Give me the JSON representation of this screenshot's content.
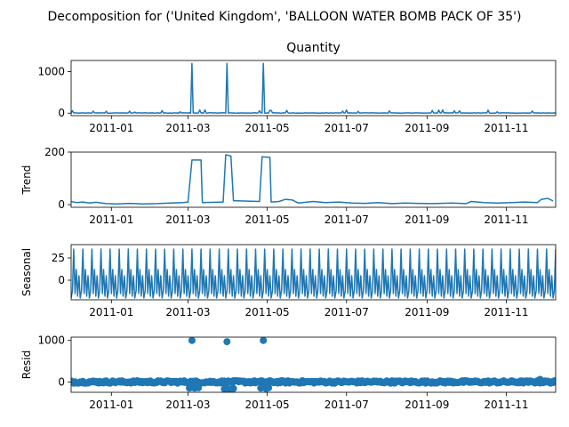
{
  "figure": {
    "suptitle": "Decomposition for ('United Kingdom', 'BALLOON WATER BOMB PACK OF 35')"
  },
  "colors": {
    "line": "#1f77b4",
    "axis": "#000000",
    "background": "#ffffff"
  },
  "chart_data": [
    {
      "type": "line",
      "title": "Quantity",
      "ylabel": "",
      "x_range": [
        "2010-12-01",
        "2011-12-09"
      ],
      "ylim": [
        -60,
        1270
      ],
      "yticks": [
        0,
        1000
      ],
      "xticks": [
        "2011-01",
        "2011-03",
        "2011-05",
        "2011-07",
        "2011-09",
        "2011-11"
      ],
      "spikes": [
        {
          "x": "2011-03-04",
          "y": 1200
        },
        {
          "x": "2011-03-31",
          "y": 1200
        },
        {
          "x": "2011-04-28",
          "y": 1200
        }
      ],
      "baseline": 10,
      "grid": false
    },
    {
      "type": "line",
      "title": "",
      "ylabel": "Trend",
      "x_range": [
        "2010-12-01",
        "2011-12-09"
      ],
      "ylim": [
        -10,
        200
      ],
      "yticks": [
        0,
        200
      ],
      "xticks": [
        "2011-01",
        "2011-03",
        "2011-05",
        "2011-07",
        "2011-09",
        "2011-11"
      ],
      "points": [
        [
          "2010-12-01",
          12
        ],
        [
          "2010-12-05",
          8
        ],
        [
          "2010-12-10",
          10
        ],
        [
          "2010-12-15",
          6
        ],
        [
          "2010-12-20",
          9
        ],
        [
          "2010-12-28",
          4
        ],
        [
          "2011-01-05",
          3
        ],
        [
          "2011-01-15",
          5
        ],
        [
          "2011-01-25",
          3
        ],
        [
          "2011-02-05",
          4
        ],
        [
          "2011-02-15",
          6
        ],
        [
          "2011-02-25",
          8
        ],
        [
          "2011-03-01",
          10
        ],
        [
          "2011-03-04",
          170
        ],
        [
          "2011-03-11",
          170
        ],
        [
          "2011-03-12",
          8
        ],
        [
          "2011-03-28",
          10
        ],
        [
          "2011-03-30",
          190
        ],
        [
          "2011-04-03",
          185
        ],
        [
          "2011-04-05",
          15
        ],
        [
          "2011-04-25",
          12
        ],
        [
          "2011-04-27",
          182
        ],
        [
          "2011-05-03",
          180
        ],
        [
          "2011-05-04",
          10
        ],
        [
          "2011-05-10",
          12
        ],
        [
          "2011-05-15",
          20
        ],
        [
          "2011-05-20",
          18
        ],
        [
          "2011-05-25",
          6
        ],
        [
          "2011-06-05",
          12
        ],
        [
          "2011-06-15",
          8
        ],
        [
          "2011-06-25",
          10
        ],
        [
          "2011-07-05",
          6
        ],
        [
          "2011-07-15",
          5
        ],
        [
          "2011-07-25",
          8
        ],
        [
          "2011-08-05",
          4
        ],
        [
          "2011-08-15",
          6
        ],
        [
          "2011-08-25",
          5
        ],
        [
          "2011-09-05",
          4
        ],
        [
          "2011-09-20",
          6
        ],
        [
          "2011-10-01",
          4
        ],
        [
          "2011-10-05",
          12
        ],
        [
          "2011-10-15",
          8
        ],
        [
          "2011-10-25",
          6
        ],
        [
          "2011-11-05",
          8
        ],
        [
          "2011-11-15",
          10
        ],
        [
          "2011-11-25",
          8
        ],
        [
          "2011-11-28",
          20
        ],
        [
          "2011-12-03",
          24
        ],
        [
          "2011-12-07",
          14
        ]
      ],
      "grid": false
    },
    {
      "type": "line",
      "title": "",
      "ylabel": "Seasonal",
      "x_range": [
        "2010-12-01",
        "2011-12-09"
      ],
      "ylim": [
        -22,
        40
      ],
      "yticks": [
        0,
        25
      ],
      "xticks": [
        "2011-01",
        "2011-03",
        "2011-05",
        "2011-07",
        "2011-09",
        "2011-11"
      ],
      "period_days": 7,
      "cycle_values": [
        -20,
        -12,
        35,
        -15,
        12,
        -18,
        5
      ],
      "grid": false
    },
    {
      "type": "scatter",
      "title": "",
      "ylabel": "Resid",
      "x_range": [
        "2010-12-01",
        "2011-12-09"
      ],
      "ylim": [
        -250,
        1080
      ],
      "yticks": [
        0,
        1000
      ],
      "xticks": [
        "2011-01",
        "2011-03",
        "2011-05",
        "2011-07",
        "2011-09",
        "2011-11"
      ],
      "outliers": [
        [
          "2011-03-04",
          1000
        ],
        [
          "2011-03-31",
          970
        ],
        [
          "2011-04-28",
          1000
        ],
        [
          "2011-03-02",
          -150
        ],
        [
          "2011-03-06",
          -150
        ],
        [
          "2011-03-09",
          -140
        ],
        [
          "2011-03-29",
          -170
        ],
        [
          "2011-04-02",
          -180
        ],
        [
          "2011-04-05",
          -160
        ],
        [
          "2011-04-26",
          -150
        ],
        [
          "2011-04-30",
          -160
        ],
        [
          "2011-05-02",
          -140
        ],
        [
          "2011-11-27",
          60
        ]
      ],
      "baseline_noise": 30,
      "grid": false
    }
  ]
}
